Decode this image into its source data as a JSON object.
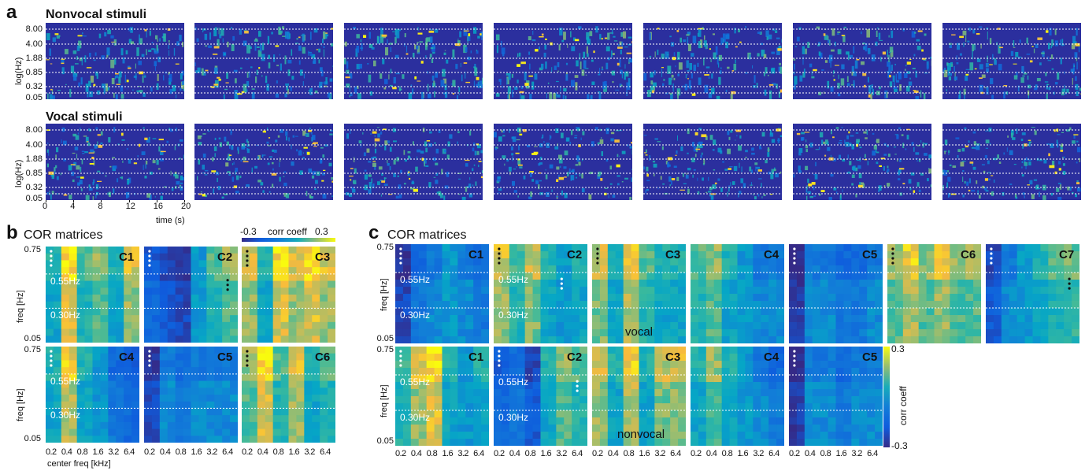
{
  "panel_a": {
    "letter": "a",
    "nonvocal_title": "Nonvocal stimuli",
    "vocal_title": "Vocal stimuli",
    "ytick_labels": [
      "8.00",
      "4.00",
      "1.88",
      "0.85",
      "0.32",
      "0.05"
    ],
    "ylabel": "log(Hz)",
    "xtick_labels": [
      "0",
      "4",
      "8",
      "12",
      "16",
      "20"
    ],
    "xlabel": "time (s)"
  },
  "panel_b": {
    "letter": "b",
    "title": "COR matrices",
    "colorbar": {
      "min_label": "-0.3",
      "label": "corr coeff",
      "max_label": "0.3"
    },
    "ytick_labels": [
      "0.75",
      "0.05"
    ],
    "ylabel": "freq [Hz]",
    "hz_labels": [
      "0.55Hz",
      "0.30Hz"
    ],
    "xtick_labels": [
      "0.2",
      "0.4",
      "0.8",
      "1.6",
      "3.2",
      "6.4"
    ],
    "xlabel": "center freq [kHz]",
    "matrices": [
      "C1",
      "C2",
      "C3",
      "C4",
      "C5",
      "C6"
    ]
  },
  "panel_c": {
    "letter": "c",
    "title": "COR matrices",
    "ytick_labels": [
      "0.75",
      "0.05"
    ],
    "ylabel": "freq [Hz]",
    "hz_labels": [
      "0.55Hz",
      "0.30Hz"
    ],
    "xtick_labels": [
      "0.2",
      "0.4",
      "0.8",
      "1.6",
      "3.2",
      "6.4"
    ],
    "vocal_label": "vocal",
    "nonvocal_label": "nonvocal",
    "vocal_matrices": [
      "C1",
      "C2",
      "C3",
      "C4",
      "C5",
      "C6",
      "C7"
    ],
    "nonvocal_matrices": [
      "C1",
      "C2",
      "C3",
      "C4",
      "C5"
    ],
    "colorbar": {
      "max_label": "0.3",
      "label": "corr coeff",
      "min_label": "-0.3"
    }
  },
  "colors": {
    "low": "#352a87",
    "mid": "#1fb7b0",
    "high": "#f9fb0e"
  },
  "chart_data": [
    {
      "type": "heatmap",
      "title": "Nonvocal stimuli",
      "description_free": true,
      "ylabel": "log(Hz)",
      "yticks": [
        8.0,
        4.0,
        1.88,
        0.85,
        0.32,
        0.05
      ],
      "xlabel": "time (s)",
      "xlim": [
        0,
        20
      ],
      "xticks": [
        0,
        4,
        8,
        12,
        16,
        20
      ],
      "panels": 7
    },
    {
      "type": "heatmap",
      "title": "Vocal stimuli",
      "ylabel": "log(Hz)",
      "yticks": [
        8.0,
        4.0,
        1.88,
        0.85,
        0.32,
        0.05
      ],
      "xlabel": "time (s)",
      "xlim": [
        0,
        20
      ],
      "xticks": [
        0,
        4,
        8,
        12,
        16,
        20
      ],
      "panels": 7
    },
    {
      "type": "heatmap",
      "title": "COR matrices",
      "xlabel": "center freq [kHz]",
      "ylabel": "freq [Hz]",
      "x": [
        0.2,
        0.4,
        0.8,
        1.6,
        3.2,
        6.4
      ],
      "ylim": [
        0.05,
        0.75
      ],
      "clim": [
        -0.3,
        0.3
      ],
      "matrices": [
        {
          "name": "C1",
          "columns": [
            0.05,
            0.25,
            0.1,
            0.15,
            0.05,
            0.2
          ],
          "significant_columns": [
            0
          ]
        },
        {
          "name": "C2",
          "columns": [
            -0.15,
            -0.2,
            -0.25,
            0.0,
            0.1,
            0.15
          ],
          "significant_columns": [
            0,
            5
          ]
        },
        {
          "name": "C3",
          "columns": [
            0.2,
            0.05,
            0.25,
            0.2,
            0.25,
            0.2
          ],
          "significant_columns": [
            0
          ]
        },
        {
          "name": "C4",
          "columns": [
            0.05,
            0.22,
            0.05,
            0.0,
            -0.1,
            -0.15
          ],
          "significant_columns": [
            0
          ]
        },
        {
          "name": "C5",
          "columns": [
            -0.25,
            -0.05,
            -0.1,
            -0.05,
            -0.05,
            -0.05
          ],
          "significant_columns": [
            0
          ]
        },
        {
          "name": "C6",
          "columns": [
            0.15,
            0.25,
            0.1,
            0.2,
            0.05,
            0.1
          ],
          "significant_columns": [
            0
          ]
        }
      ]
    },
    {
      "type": "heatmap",
      "title": "COR matrices",
      "subset": "vocal",
      "ylabel": "freq [Hz]",
      "x": [
        0.2,
        0.4,
        0.8,
        1.6,
        3.2,
        6.4
      ],
      "ylim": [
        0.05,
        0.75
      ],
      "clim": [
        -0.3,
        0.3
      ],
      "matrices": [
        {
          "name": "C1",
          "columns": [
            -0.25,
            -0.1,
            -0.05,
            0.0,
            -0.05,
            -0.1
          ],
          "significant_columns": [
            0
          ]
        },
        {
          "name": "C2",
          "columns": [
            0.2,
            0.1,
            0.18,
            0.05,
            0.0,
            0.05
          ],
          "significant_columns": [
            0,
            4
          ]
        },
        {
          "name": "C3",
          "columns": [
            0.18,
            0.05,
            0.22,
            0.1,
            0.05,
            0.05
          ],
          "significant_columns": [
            0
          ]
        },
        {
          "name": "C4",
          "columns": [
            0.1,
            0.15,
            0.05,
            0.0,
            -0.05,
            -0.05
          ],
          "significant_columns": []
        },
        {
          "name": "C5",
          "columns": [
            -0.28,
            -0.05,
            -0.05,
            -0.1,
            -0.1,
            -0.05
          ],
          "significant_columns": [
            0
          ]
        },
        {
          "name": "C6",
          "columns": [
            0.15,
            0.22,
            0.15,
            0.2,
            0.15,
            0.15
          ],
          "significant_columns": [
            0
          ]
        },
        {
          "name": "C7",
          "columns": [
            -0.2,
            -0.05,
            0.0,
            0.05,
            0.1,
            0.12
          ],
          "significant_columns": [
            0,
            5
          ]
        }
      ]
    },
    {
      "type": "heatmap",
      "title": "COR matrices",
      "subset": "nonvocal",
      "ylabel": "freq [Hz]",
      "x": [
        0.2,
        0.4,
        0.8,
        1.6,
        3.2,
        6.4
      ],
      "ylim": [
        0.05,
        0.75
      ],
      "clim": [
        -0.3,
        0.3
      ],
      "matrices": [
        {
          "name": "C1",
          "columns": [
            0.1,
            0.2,
            0.25,
            0.05,
            0.0,
            0.05
          ],
          "significant_columns": [
            0
          ]
        },
        {
          "name": "C2",
          "columns": [
            -0.15,
            -0.1,
            -0.2,
            0.05,
            0.15,
            0.1
          ],
          "significant_columns": [
            0,
            5
          ]
        },
        {
          "name": "C3",
          "columns": [
            0.2,
            0.05,
            0.22,
            0.05,
            0.18,
            0.2
          ],
          "significant_columns": []
        },
        {
          "name": "C4",
          "columns": [
            0.05,
            0.15,
            0.05,
            0.0,
            -0.05,
            -0.1
          ],
          "significant_columns": []
        },
        {
          "name": "C5",
          "columns": [
            -0.28,
            -0.05,
            -0.05,
            -0.1,
            -0.05,
            -0.05
          ],
          "significant_columns": [
            0
          ]
        }
      ]
    }
  ]
}
